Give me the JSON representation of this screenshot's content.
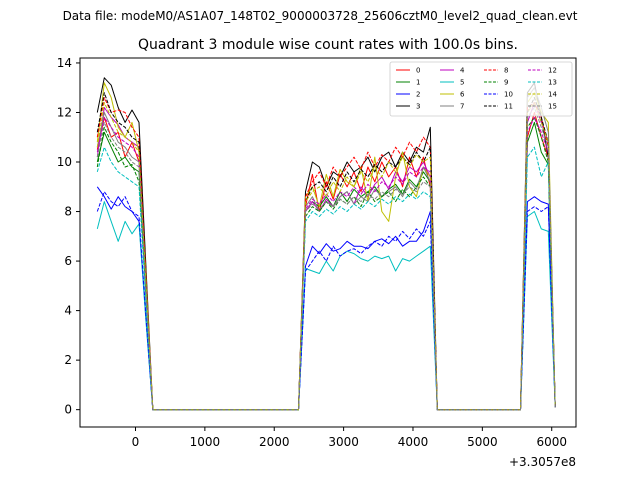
{
  "suptitle": "Data file: modeM0/AS1A07_148T02_9000003728_25606cztM0_level2_quad_clean.evt",
  "chart_data": {
    "type": "line",
    "title": "Quadrant 3 module wise count rates with 100.0s bins.",
    "xlabel": "",
    "ylabel": "",
    "x_offset_label": "+3.3057e8",
    "xlim": [
      -800,
      6350
    ],
    "ylim": [
      -0.7,
      14.2
    ],
    "x_ticks": [
      0,
      1000,
      2000,
      3000,
      4000,
      5000,
      6000
    ],
    "x_tick_labels": [
      "0",
      "1000",
      "2000",
      "3000",
      "4000",
      "5000",
      "6000"
    ],
    "y_ticks": [
      0,
      2,
      4,
      6,
      8,
      10,
      12,
      14
    ],
    "y_tick_labels": [
      "0",
      "2",
      "4",
      "6",
      "8",
      "10",
      "12",
      "14"
    ],
    "grid": false,
    "legend_placement": "top-right",
    "legend_columns": 4,
    "x": [
      -550,
      -450,
      -350,
      -250,
      -150,
      -50,
      50,
      150,
      250,
      2350,
      2450,
      2550,
      2650,
      2750,
      2850,
      2950,
      3050,
      3150,
      3250,
      3350,
      3450,
      3550,
      3650,
      3750,
      3850,
      3950,
      4050,
      4150,
      4250,
      4350,
      5550,
      5650,
      5750,
      5850,
      5950,
      6050
    ],
    "series": [
      {
        "name": "0",
        "color": "#ff0000",
        "dash": false,
        "values": [
          10.5,
          11.8,
          11.0,
          11.2,
          10.2,
          10.8,
          10.0,
          5.0,
          0,
          0,
          8.2,
          9.5,
          8.0,
          9.2,
          8.5,
          9.5,
          9.0,
          9.6,
          8.8,
          9.8,
          9.2,
          10.0,
          9.4,
          9.8,
          9.0,
          10.2,
          9.4,
          10.2,
          9.0,
          0,
          0,
          11.0,
          12.0,
          11.0,
          10.2,
          0.1
        ]
      },
      {
        "name": "1",
        "color": "#008000",
        "dash": false,
        "values": [
          10.0,
          11.2,
          10.6,
          10.0,
          10.2,
          9.8,
          9.6,
          4.6,
          0,
          0,
          8.0,
          8.4,
          8.2,
          8.6,
          8.2,
          8.8,
          8.4,
          8.9,
          8.6,
          8.8,
          9.0,
          8.6,
          8.9,
          9.1,
          8.7,
          9.3,
          9.0,
          9.6,
          9.2,
          0,
          0,
          10.8,
          11.6,
          10.4,
          9.9,
          0.1
        ]
      },
      {
        "name": "2",
        "color": "#0000ff",
        "dash": false,
        "values": [
          9.0,
          8.6,
          8.1,
          8.6,
          8.2,
          8.0,
          7.6,
          3.7,
          0,
          0,
          5.8,
          6.6,
          6.3,
          6.7,
          6.4,
          6.5,
          6.8,
          6.6,
          6.6,
          6.5,
          6.8,
          6.9,
          6.7,
          7.0,
          6.6,
          6.8,
          6.8,
          7.2,
          8.0,
          0,
          0,
          8.4,
          8.6,
          8.4,
          8.3,
          0.1
        ]
      },
      {
        "name": "3",
        "color": "#000000",
        "dash": false,
        "values": [
          12.0,
          13.4,
          13.1,
          12.2,
          11.6,
          12.1,
          11.6,
          5.8,
          0,
          0,
          8.8,
          10.0,
          9.8,
          9.0,
          9.6,
          9.4,
          10.0,
          9.6,
          9.8,
          10.2,
          9.6,
          10.2,
          10.4,
          9.8,
          10.4,
          10.0,
          10.6,
          10.4,
          11.4,
          0,
          0,
          12.8,
          13.2,
          11.8,
          10.2,
          0.1
        ]
      },
      {
        "name": "4",
        "color": "#bf00bf",
        "dash": false,
        "values": [
          10.2,
          12.2,
          11.8,
          11.5,
          11.0,
          10.8,
          10.6,
          5.2,
          0,
          0,
          8.0,
          8.4,
          8.0,
          8.5,
          8.2,
          8.6,
          8.8,
          8.3,
          9.0,
          8.6,
          9.1,
          9.4,
          8.9,
          9.6,
          9.2,
          9.8,
          9.6,
          10.0,
          9.4,
          0,
          0,
          11.6,
          12.4,
          11.6,
          10.8,
          0.1
        ]
      },
      {
        "name": "5",
        "color": "#00bfbf",
        "dash": false,
        "values": [
          7.3,
          8.4,
          7.6,
          6.8,
          7.6,
          7.1,
          7.5,
          3.6,
          0,
          0,
          5.7,
          5.6,
          5.5,
          6.0,
          5.6,
          6.2,
          6.4,
          6.3,
          6.1,
          6.0,
          6.2,
          6.1,
          6.2,
          5.6,
          6.1,
          6.0,
          6.2,
          6.4,
          6.6,
          0,
          0,
          7.8,
          8.0,
          7.3,
          7.2,
          0.1
        ]
      },
      {
        "name": "6",
        "color": "#bfbf00",
        "dash": false,
        "values": [
          10.8,
          13.2,
          12.6,
          11.4,
          11.0,
          11.6,
          10.4,
          5.5,
          0,
          0,
          8.6,
          9.0,
          8.2,
          9.5,
          8.6,
          9.7,
          9.2,
          9.0,
          9.8,
          8.4,
          10.2,
          8.0,
          7.6,
          9.4,
          10.4,
          9.0,
          8.6,
          9.8,
          9.4,
          0,
          0,
          12.4,
          12.8,
          12.0,
          11.6,
          0.1
        ]
      },
      {
        "name": "7",
        "color": "#808080",
        "dash": false,
        "values": [
          10.6,
          12.0,
          11.4,
          10.8,
          10.6,
          10.2,
          10.0,
          5.1,
          0,
          0,
          8.2,
          8.6,
          8.0,
          8.4,
          8.2,
          8.6,
          8.8,
          8.3,
          8.6,
          8.4,
          8.9,
          8.6,
          8.8,
          9.0,
          8.6,
          9.2,
          8.9,
          9.8,
          9.2,
          0,
          0,
          12.6,
          13.0,
          12.2,
          11.2,
          0.1
        ]
      },
      {
        "name": "8",
        "color": "#ff0000",
        "dash": true,
        "values": [
          11.0,
          12.6,
          12.0,
          12.1,
          12.0,
          11.4,
          11.0,
          5.4,
          0,
          0,
          8.6,
          9.2,
          9.6,
          9.0,
          9.8,
          9.4,
          9.8,
          10.2,
          9.7,
          10.4,
          9.8,
          10.3,
          10.0,
          10.6,
          10.2,
          10.8,
          10.4,
          11.0,
          10.6,
          0,
          0,
          12.2,
          12.4,
          11.8,
          10.6,
          0.1
        ]
      },
      {
        "name": "9",
        "color": "#008000",
        "dash": true,
        "values": [
          9.8,
          11.4,
          10.8,
          10.4,
          9.8,
          9.9,
          9.2,
          4.7,
          0,
          0,
          7.8,
          8.2,
          8.0,
          8.4,
          8.1,
          8.5,
          8.3,
          8.6,
          8.2,
          8.8,
          8.4,
          8.6,
          8.8,
          8.4,
          8.9,
          8.6,
          9.0,
          9.4,
          9.0,
          0,
          0,
          11.4,
          11.8,
          11.0,
          10.0,
          0.1
        ]
      },
      {
        "name": "10",
        "color": "#0000ff",
        "dash": true,
        "values": [
          8.0,
          8.8,
          8.4,
          8.2,
          8.6,
          8.0,
          7.8,
          3.8,
          0,
          0,
          5.6,
          6.0,
          6.4,
          6.0,
          6.6,
          6.2,
          6.4,
          6.5,
          6.3,
          6.6,
          6.8,
          6.6,
          7.0,
          6.8,
          7.2,
          6.9,
          7.3,
          7.0,
          7.6,
          0,
          0,
          8.0,
          8.2,
          8.0,
          8.2,
          0.1
        ]
      },
      {
        "name": "11",
        "color": "#000000",
        "dash": true,
        "values": [
          11.2,
          12.8,
          12.0,
          11.6,
          11.4,
          11.0,
          10.8,
          5.3,
          0,
          0,
          8.4,
          9.0,
          9.2,
          8.8,
          9.4,
          9.0,
          9.6,
          9.2,
          9.7,
          9.4,
          9.9,
          9.6,
          10.0,
          9.8,
          10.2,
          9.9,
          10.4,
          10.0,
          10.6,
          0,
          0,
          12.0,
          12.6,
          11.8,
          10.8,
          0.1
        ]
      },
      {
        "name": "12",
        "color": "#bf00bf",
        "dash": true,
        "values": [
          10.4,
          11.8,
          11.4,
          11.0,
          10.8,
          10.6,
          10.2,
          5.0,
          0,
          0,
          8.1,
          8.5,
          8.3,
          8.7,
          8.4,
          8.8,
          8.6,
          9.0,
          8.7,
          9.1,
          8.8,
          9.2,
          9.0,
          9.4,
          9.1,
          9.6,
          9.4,
          9.8,
          9.6,
          0,
          0,
          11.2,
          11.8,
          11.2,
          10.4,
          0.1
        ]
      },
      {
        "name": "13",
        "color": "#00bfbf",
        "dash": true,
        "values": [
          9.6,
          10.6,
          10.0,
          9.6,
          9.4,
          9.2,
          9.0,
          4.4,
          0,
          0,
          7.6,
          8.0,
          7.8,
          8.1,
          7.9,
          8.2,
          8.0,
          8.3,
          8.1,
          8.4,
          8.2,
          8.5,
          8.3,
          8.6,
          8.4,
          8.7,
          8.5,
          8.8,
          8.6,
          0,
          0,
          10.2,
          10.6,
          9.4,
          10.0,
          0.1
        ]
      },
      {
        "name": "14",
        "color": "#bfbf00",
        "dash": true,
        "values": [
          10.6,
          12.4,
          11.8,
          11.2,
          11.0,
          10.8,
          10.4,
          5.2,
          0,
          0,
          8.4,
          8.8,
          9.0,
          8.6,
          9.2,
          8.8,
          9.4,
          9.0,
          9.6,
          9.2,
          9.8,
          9.4,
          10.0,
          9.6,
          10.2,
          9.8,
          10.3,
          10.0,
          10.2,
          0,
          0,
          12.0,
          12.4,
          11.6,
          10.8,
          0.1
        ]
      },
      {
        "name": "15",
        "color": "#808080",
        "dash": true,
        "values": [
          10.2,
          11.6,
          11.0,
          10.6,
          10.4,
          10.0,
          9.8,
          4.9,
          0,
          0,
          8.0,
          8.3,
          8.1,
          8.4,
          8.2,
          8.5,
          8.3,
          8.6,
          8.4,
          8.7,
          8.5,
          8.8,
          8.6,
          8.9,
          8.7,
          9.0,
          8.8,
          9.2,
          9.0,
          0,
          0,
          11.8,
          12.2,
          11.4,
          10.6,
          0.1
        ]
      }
    ]
  }
}
